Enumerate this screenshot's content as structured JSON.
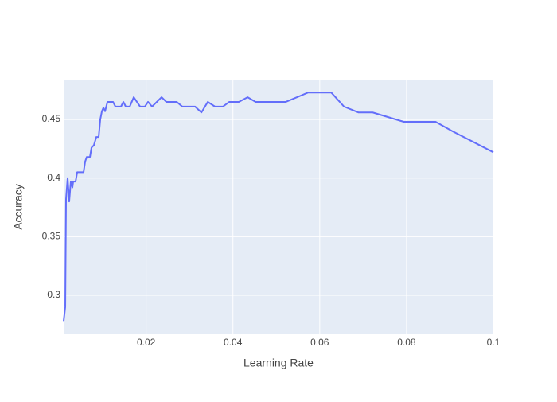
{
  "chart_data": {
    "type": "line",
    "x_label": "Learning Rate",
    "y_label": "Accuracy",
    "x": [
      0.001,
      0.00137,
      0.00155,
      0.00192,
      0.00228,
      0.00265,
      0.00302,
      0.0032,
      0.00375,
      0.00412,
      0.00559,
      0.00595,
      0.00632,
      0.00706,
      0.00742,
      0.00797,
      0.00852,
      0.00907,
      0.00944,
      0.00981,
      0.01017,
      0.01054,
      0.01109,
      0.01238,
      0.01293,
      0.01421,
      0.01476,
      0.01531,
      0.01623,
      0.01715,
      0.01861,
      0.01972,
      0.02045,
      0.02137,
      0.02357,
      0.02467,
      0.02706,
      0.02834,
      0.03128,
      0.03274,
      0.03421,
      0.03586,
      0.0377,
      0.03917,
      0.04137,
      0.04339,
      0.04522,
      0.05219,
      0.05733,
      0.06265,
      0.06559,
      0.06889,
      0.07219,
      0.07935,
      0.08669,
      0.09054,
      0.1
    ],
    "series": [
      {
        "color": "#636efa",
        "values": [
          0.278,
          0.29,
          0.382,
          0.4,
          0.38,
          0.397,
          0.392,
          0.397,
          0.397,
          0.405,
          0.405,
          0.414,
          0.418,
          0.418,
          0.426,
          0.428,
          0.435,
          0.435,
          0.45,
          0.457,
          0.46,
          0.457,
          0.465,
          0.465,
          0.461,
          0.461,
          0.465,
          0.461,
          0.461,
          0.469,
          0.461,
          0.461,
          0.465,
          0.461,
          0.469,
          0.465,
          0.465,
          0.461,
          0.461,
          0.456,
          0.465,
          0.461,
          0.461,
          0.465,
          0.465,
          0.469,
          0.465,
          0.465,
          0.473,
          0.473,
          0.461,
          0.456,
          0.456,
          0.448,
          0.448,
          0.44,
          0.422
        ]
      }
    ],
    "xlim": [
      0.001,
      0.1
    ],
    "ylim": [
      0.2667,
      0.484
    ],
    "xticks": [
      0.02,
      0.04,
      0.06,
      0.08,
      0.1
    ],
    "yticks": [
      0.3,
      0.35,
      0.4,
      0.45
    ],
    "grid": true,
    "background": "#e5ecf6"
  }
}
